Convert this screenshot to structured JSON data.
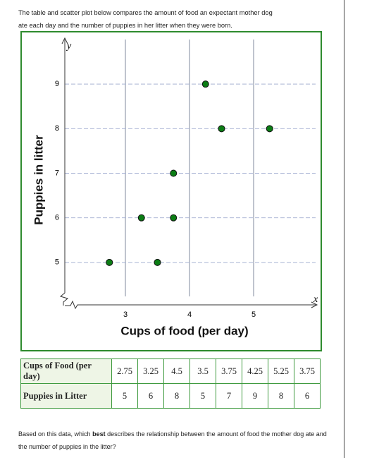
{
  "intro": {
    "lines": [
      "The table and scatter plot below compares the amount of food an expectant mother dog",
      "ate each day and the number of puppies in her litter when they were born."
    ]
  },
  "chart_data": {
    "type": "scatter",
    "x_title": "Cups of food (per day)",
    "y_title": "Puppies in litter",
    "x_symbol": "x",
    "y_symbol": "y",
    "x": [
      2.75,
      3.25,
      3.5,
      3.75,
      3.75,
      4.25,
      4.5,
      5.25
    ],
    "values": [
      5,
      6,
      5,
      7,
      6,
      9,
      8,
      8
    ],
    "color": "#0b7d14",
    "xlim": [
      2,
      6
    ],
    "ylim": [
      4,
      10
    ],
    "xticks": [
      3,
      4,
      5
    ],
    "yticks": [
      5,
      6,
      7,
      8,
      9
    ],
    "grid": true
  },
  "table": {
    "rows": [
      {
        "header": "Cups of Food (per day)",
        "cells": [
          2.75,
          3.25,
          4.5,
          3.5,
          3.75,
          4.25,
          5.25,
          3.75
        ]
      },
      {
        "header": "Puppies in Litter",
        "cells": [
          5,
          6,
          8,
          5,
          7,
          9,
          8,
          6
        ]
      }
    ]
  },
  "question": {
    "before": "Based on this data, which ",
    "emphasis": "best",
    "after": " describes the relationship between the amount of food the mother dog ate and the number of puppies in the litter?"
  }
}
